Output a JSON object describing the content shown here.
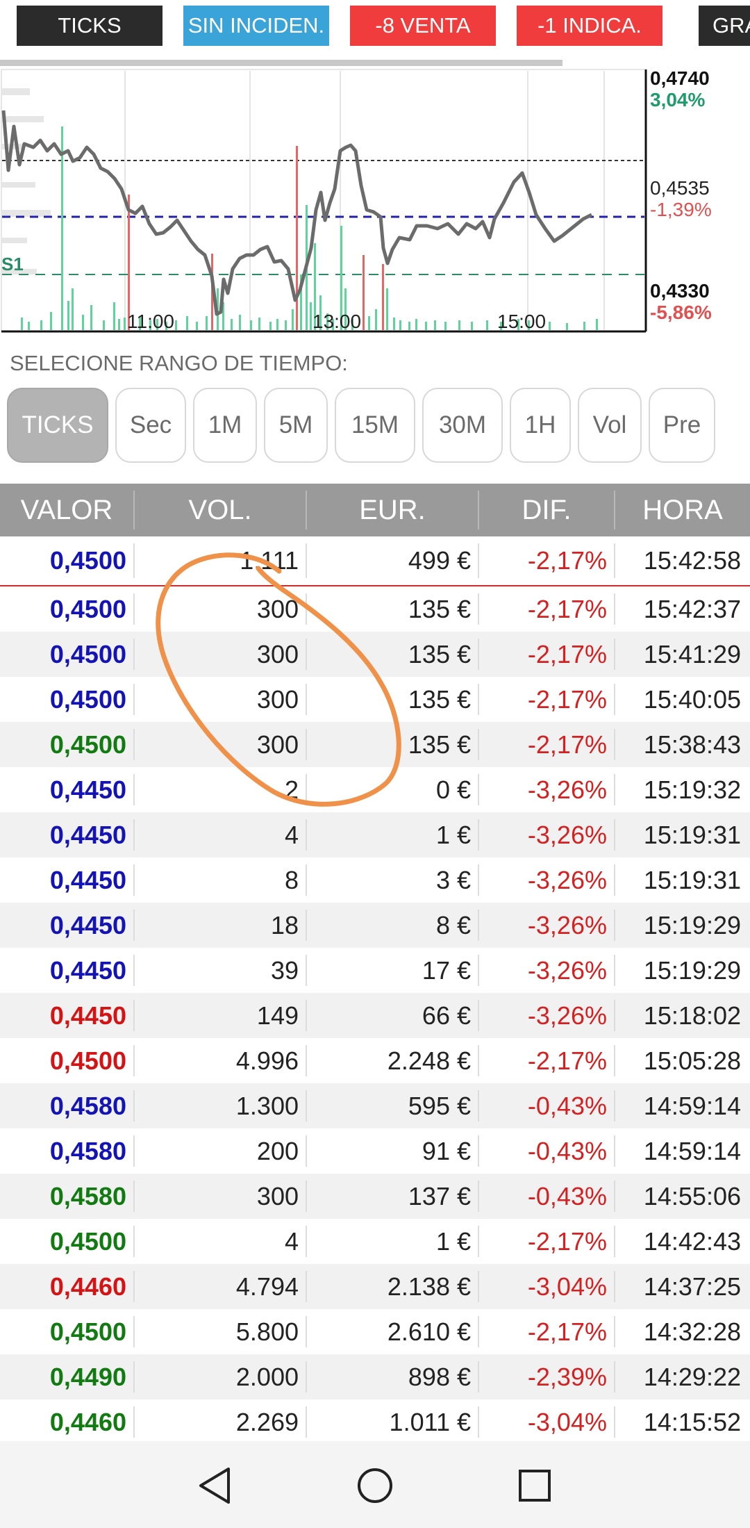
{
  "tags": [
    {
      "label": "TICKS",
      "bg": "#2b2b2b"
    },
    {
      "label": "SIN INCIDEN.",
      "bg": "#3aa3d8"
    },
    {
      "label": "-8 VENTA",
      "bg": "#f03c3c"
    },
    {
      "label": "-1 INDICA.",
      "bg": "#f03c3c"
    },
    {
      "label": "GRA",
      "bg": "#2b2b2b"
    }
  ],
  "chart": {
    "price_top": "0,4740",
    "pct_top": "3,04%",
    "price_mid": "0,4535",
    "pct_mid": "-1,39%",
    "price_low": "0,4330",
    "pct_low": "-5,86%",
    "support_label": "S1",
    "time_labels": [
      "11:00",
      "13:00",
      "15:00"
    ],
    "colors": {
      "up": "#1f9c6c",
      "down": "#e05050",
      "line": "#666666",
      "ref": "#2222aa"
    }
  },
  "range": {
    "title": "SELECIONE RANGO DE TIEMPO:",
    "buttons": [
      "TICKS",
      "Sec",
      "1M",
      "5M",
      "15M",
      "30M",
      "1H",
      "Vol",
      "Pre"
    ],
    "active": "TICKS"
  },
  "table": {
    "headers": [
      "VALOR",
      "VOL.",
      "EUR.",
      "DIF.",
      "HORA"
    ],
    "rows": [
      {
        "valor": "0,4500",
        "vol": "1.111",
        "eur": "499 €",
        "dif": "-2,17%",
        "hora": "15:42:58",
        "color": "blue"
      },
      {
        "valor": "0,4500",
        "vol": "300",
        "eur": "135 €",
        "dif": "-2,17%",
        "hora": "15:42:37",
        "color": "blue"
      },
      {
        "valor": "0,4500",
        "vol": "300",
        "eur": "135 €",
        "dif": "-2,17%",
        "hora": "15:41:29",
        "color": "blue"
      },
      {
        "valor": "0,4500",
        "vol": "300",
        "eur": "135 €",
        "dif": "-2,17%",
        "hora": "15:40:05",
        "color": "blue"
      },
      {
        "valor": "0,4500",
        "vol": "300",
        "eur": "135 €",
        "dif": "-2,17%",
        "hora": "15:38:43",
        "color": "green"
      },
      {
        "valor": "0,4450",
        "vol": "2",
        "eur": "0 €",
        "dif": "-3,26%",
        "hora": "15:19:32",
        "color": "blue"
      },
      {
        "valor": "0,4450",
        "vol": "4",
        "eur": "1 €",
        "dif": "-3,26%",
        "hora": "15:19:31",
        "color": "blue"
      },
      {
        "valor": "0,4450",
        "vol": "8",
        "eur": "3 €",
        "dif": "-3,26%",
        "hora": "15:19:31",
        "color": "blue"
      },
      {
        "valor": "0,4450",
        "vol": "18",
        "eur": "8 €",
        "dif": "-3,26%",
        "hora": "15:19:29",
        "color": "blue"
      },
      {
        "valor": "0,4450",
        "vol": "39",
        "eur": "17 €",
        "dif": "-3,26%",
        "hora": "15:19:29",
        "color": "blue"
      },
      {
        "valor": "0,4450",
        "vol": "149",
        "eur": "66 €",
        "dif": "-3,26%",
        "hora": "15:18:02",
        "color": "red"
      },
      {
        "valor": "0,4500",
        "vol": "4.996",
        "eur": "2.248 €",
        "dif": "-2,17%",
        "hora": "15:05:28",
        "color": "red"
      },
      {
        "valor": "0,4580",
        "vol": "1.300",
        "eur": "595 €",
        "dif": "-0,43%",
        "hora": "14:59:14",
        "color": "blue"
      },
      {
        "valor": "0,4580",
        "vol": "200",
        "eur": "91 €",
        "dif": "-0,43%",
        "hora": "14:59:14",
        "color": "blue"
      },
      {
        "valor": "0,4580",
        "vol": "300",
        "eur": "137 €",
        "dif": "-0,43%",
        "hora": "14:55:06",
        "color": "green"
      },
      {
        "valor": "0,4500",
        "vol": "4",
        "eur": "1 €",
        "dif": "-2,17%",
        "hora": "14:42:43",
        "color": "green"
      },
      {
        "valor": "0,4460",
        "vol": "4.794",
        "eur": "2.138 €",
        "dif": "-3,04%",
        "hora": "14:37:25",
        "color": "red"
      },
      {
        "valor": "0,4500",
        "vol": "5.800",
        "eur": "2.610 €",
        "dif": "-2,17%",
        "hora": "14:32:28",
        "color": "green"
      },
      {
        "valor": "0,4490",
        "vol": "2.000",
        "eur": "898 €",
        "dif": "-2,39%",
        "hora": "14:29:22",
        "color": "green"
      },
      {
        "valor": "0,4460",
        "vol": "2.269",
        "eur": "1.011 €",
        "dif": "-3,04%",
        "hora": "14:15:52",
        "color": "green"
      }
    ]
  },
  "value_colors": {
    "blue": "#1414b4",
    "green": "#117a11",
    "red": "#d41414"
  },
  "annotation_color": "#f0914a",
  "navbar": {
    "icons": [
      "back-icon",
      "home-icon",
      "recents-icon"
    ]
  }
}
